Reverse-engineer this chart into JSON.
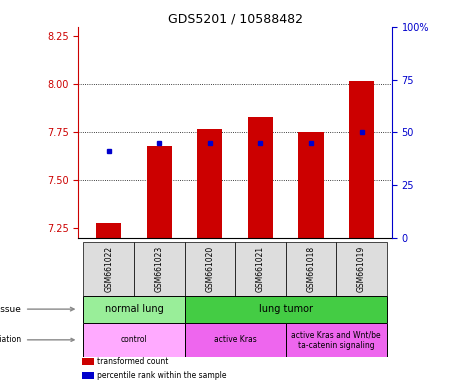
{
  "title": "GDS5201 / 10588482",
  "samples": [
    "GSM661022",
    "GSM661023",
    "GSM661020",
    "GSM661021",
    "GSM661018",
    "GSM661019"
  ],
  "red_values": [
    7.28,
    7.68,
    7.77,
    7.83,
    7.75,
    8.02
  ],
  "blue_values": [
    7.655,
    7.695,
    7.695,
    7.695,
    7.695,
    7.755
  ],
  "ylim_left": [
    7.2,
    8.3
  ],
  "yticks_left": [
    7.25,
    7.5,
    7.75,
    8.0,
    8.25
  ],
  "yticks_right": [
    0,
    25,
    50,
    75,
    100
  ],
  "left_color": "#cc0000",
  "right_color": "#0000cc",
  "bar_width": 0.5,
  "tissue_groups": [
    {
      "label": "normal lung",
      "cols": [
        0,
        1
      ],
      "color": "#99ee99"
    },
    {
      "label": "lung tumor",
      "cols": [
        2,
        3,
        4,
        5
      ],
      "color": "#44cc44"
    }
  ],
  "genotype_groups": [
    {
      "label": "control",
      "cols": [
        0,
        1
      ],
      "color": "#ffaaff"
    },
    {
      "label": "active Kras",
      "cols": [
        2,
        3
      ],
      "color": "#ee66ee"
    },
    {
      "label": "active Kras and Wnt/be\nta-catenin signaling",
      "cols": [
        4,
        5
      ],
      "color": "#ee66ee"
    }
  ],
  "legend_items": [
    {
      "label": "transformed count",
      "color": "#cc0000"
    },
    {
      "label": "percentile rank within the sample",
      "color": "#0000cc"
    }
  ]
}
